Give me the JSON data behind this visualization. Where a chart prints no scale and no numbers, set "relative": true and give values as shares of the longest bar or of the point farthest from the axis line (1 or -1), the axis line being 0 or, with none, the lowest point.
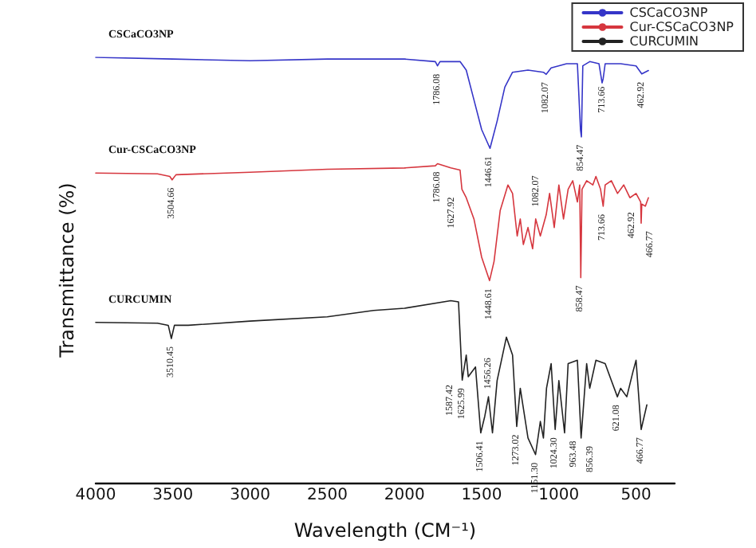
{
  "chart_data": {
    "type": "line",
    "relative": true,
    "xlabel": "Wavelength (CM⁻¹)",
    "ylabel": "Transmittance (%)",
    "xlim": [
      4000,
      250
    ],
    "xticks": [
      4000,
      3500,
      3000,
      2500,
      2000,
      1500,
      1000,
      500
    ],
    "grid": false,
    "legend": "top right",
    "marker": "none",
    "line_style": "solid",
    "series": [
      {
        "name": "CSCaCO3NP",
        "color": "#3535c8",
        "x": [
          4000,
          3500,
          3000,
          2500,
          2000,
          1800,
          1786,
          1770,
          1640,
          1600,
          1550,
          1500,
          1446,
          1400,
          1350,
          1300,
          1200,
          1100,
          1082,
          1050,
          950,
          880,
          860,
          854,
          845,
          800,
          740,
          720,
          713,
          700,
          600,
          500,
          463,
          420
        ],
        "values": [
          1,
          0.996,
          0.992,
          0.996,
          0.996,
          0.99,
          0.98,
          0.99,
          0.99,
          0.97,
          0.9,
          0.83,
          0.786,
          0.85,
          0.93,
          0.965,
          0.97,
          0.965,
          0.96,
          0.975,
          0.985,
          0.985,
          0.83,
          0.813,
          0.98,
          0.99,
          0.985,
          0.94,
          0.95,
          0.985,
          0.985,
          0.98,
          0.961,
          0.969
        ]
      },
      {
        "name": "Cur-CSCaCO3NP",
        "color": "#d6363e",
        "x": [
          4000,
          3600,
          3520,
          3505,
          3480,
          3000,
          2500,
          2000,
          1800,
          1786,
          1700,
          1640,
          1628,
          1600,
          1550,
          1500,
          1449,
          1420,
          1380,
          1330,
          1300,
          1270,
          1250,
          1230,
          1200,
          1170,
          1150,
          1120,
          1082,
          1060,
          1030,
          1000,
          970,
          940,
          910,
          880,
          865,
          858,
          850,
          820,
          780,
          760,
          730,
          713,
          700,
          660,
          620,
          580,
          540,
          500,
          470,
          467,
          463,
          440,
          420
        ],
        "values": [
          0.728,
          0.726,
          0.72,
          0.712,
          0.724,
          0.73,
          0.737,
          0.74,
          0.745,
          0.75,
          0.74,
          0.735,
          0.69,
          0.67,
          0.62,
          0.53,
          0.475,
          0.52,
          0.64,
          0.7,
          0.68,
          0.58,
          0.62,
          0.56,
          0.6,
          0.55,
          0.62,
          0.58,
          0.63,
          0.68,
          0.6,
          0.7,
          0.62,
          0.69,
          0.71,
          0.66,
          0.7,
          0.482,
          0.69,
          0.71,
          0.7,
          0.72,
          0.69,
          0.65,
          0.7,
          0.71,
          0.68,
          0.7,
          0.67,
          0.68,
          0.66,
          0.61,
          0.655,
          0.65,
          0.67
        ]
      },
      {
        "name": "CURCUMIN",
        "color": "#222222",
        "x": [
          4000,
          3600,
          3530,
          3510,
          3490,
          3400,
          3000,
          2500,
          2200,
          2000,
          1700,
          1650,
          1626,
          1600,
          1587,
          1540,
          1506,
          1480,
          1456,
          1430,
          1400,
          1340,
          1300,
          1273,
          1250,
          1200,
          1151,
          1120,
          1100,
          1080,
          1050,
          1024,
          1000,
          963,
          940,
          880,
          856,
          820,
          800,
          760,
          700,
          660,
          621,
          600,
          560,
          520,
          500,
          467,
          430
        ],
        "values": [
          0.377,
          0.375,
          0.37,
          0.339,
          0.37,
          0.37,
          0.38,
          0.39,
          0.405,
          0.41,
          0.428,
          0.425,
          0.241,
          0.3,
          0.249,
          0.272,
          0.117,
          0.156,
          0.202,
          0.117,
          0.24,
          0.342,
          0.3,
          0.132,
          0.222,
          0.105,
          0.066,
          0.144,
          0.105,
          0.222,
          0.28,
          0.125,
          0.24,
          0.117,
          0.28,
          0.288,
          0.105,
          0.28,
          0.222,
          0.288,
          0.28,
          0.24,
          0.202,
          0.222,
          0.202,
          0.261,
          0.288,
          0.125,
          0.183
        ]
      }
    ],
    "annotations": [
      {
        "text": "1786.08",
        "x": 1786,
        "y": 0.98
      },
      {
        "text": "1446.61",
        "x": 1446,
        "y": 0.786
      },
      {
        "text": "1082.07",
        "x": 1082,
        "y": 0.96
      },
      {
        "text": "854.47",
        "x": 854,
        "y": 0.813
      },
      {
        "text": "713.66",
        "x": 713,
        "y": 0.95
      },
      {
        "text": "462.92",
        "x": 463,
        "y": 0.961
      },
      {
        "text": "3504.66",
        "x": 3505,
        "y": 0.712
      },
      {
        "text": "1786.08",
        "x": 1786,
        "y": 0.75
      },
      {
        "text": "1627.92",
        "x": 1628,
        "y": 0.69
      },
      {
        "text": "1448.61",
        "x": 1449,
        "y": 0.475
      },
      {
        "text": "1082.07",
        "x": 1082,
        "y": 0.63
      },
      {
        "text": "858.47",
        "x": 858,
        "y": 0.482
      },
      {
        "text": "713.66",
        "x": 713,
        "y": 0.65
      },
      {
        "text": "462.92",
        "x": 463,
        "y": 0.655
      },
      {
        "text": "466.77",
        "x": 467,
        "y": 0.61
      },
      {
        "text": "3510.45",
        "x": 3510,
        "y": 0.339
      },
      {
        "text": "1625.99",
        "x": 1626,
        "y": 0.241
      },
      {
        "text": "1587.42",
        "x": 1587,
        "y": 0.249
      },
      {
        "text": "1506.41",
        "x": 1506,
        "y": 0.117
      },
      {
        "text": "1456.26",
        "x": 1456,
        "y": 0.202
      },
      {
        "text": "1273.02",
        "x": 1273,
        "y": 0.132
      },
      {
        "text": "1151.30",
        "x": 1151,
        "y": 0.066
      },
      {
        "text": "1024.30",
        "x": 1024,
        "y": 0.125
      },
      {
        "text": "963.48",
        "x": 963,
        "y": 0.117
      },
      {
        "text": "856.39",
        "x": 856,
        "y": 0.105
      },
      {
        "text": "621.08",
        "x": 621,
        "y": 0.202
      },
      {
        "text": "466.77",
        "x": 467,
        "y": 0.125
      }
    ]
  }
}
